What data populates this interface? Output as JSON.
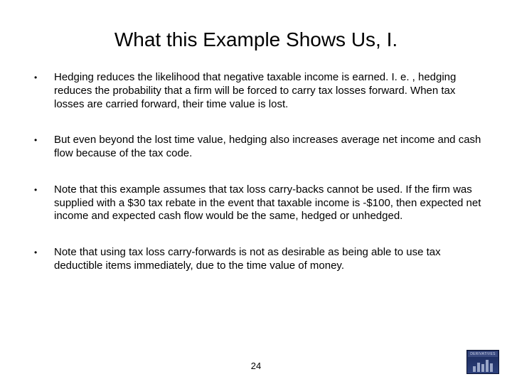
{
  "title": "What this Example Shows Us, I.",
  "bullets": [
    "Hedging reduces the likelihood that negative taxable income is earned. I. e. , hedging reduces the probability that a firm will be forced to carry tax losses forward. When tax losses are carried forward, their time value is lost.",
    "But even beyond the lost time value, hedging also increases average net income and cash flow because of the tax code.",
    "Note that this example assumes that tax loss carry-backs cannot be used. If the firm was supplied with a $30 tax rebate in the event that taxable income is -$100, then expected net income and expected cash flow would be the same, hedged or unhedged.",
    "Note that using tax loss carry-forwards is not as desirable as being able to use tax deductible items immediately, due to the time value of money."
  ],
  "page_number": "24",
  "logo_text": "DERIVATIVES",
  "style": {
    "background_color": "#ffffff",
    "text_color": "#000000",
    "title_fontsize": 28,
    "body_fontsize": 15,
    "font_family": "Arial",
    "bullet_char": "•"
  }
}
